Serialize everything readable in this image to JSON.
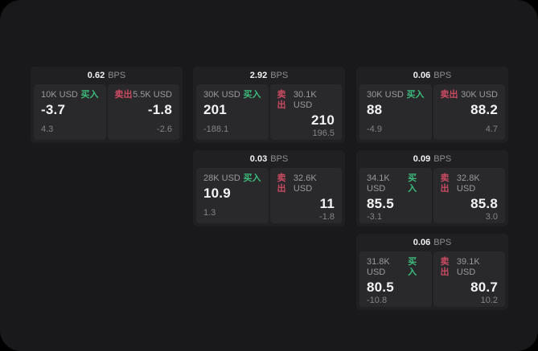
{
  "labels": {
    "bps_suffix": "BPS",
    "buy": "买入",
    "sell": "卖出"
  },
  "colors": {
    "backdrop": "#000000",
    "panel_bg": "#19191b",
    "card_bg": "#202022",
    "pane_bg": "#29292c",
    "buy_green": "#3cbb7d",
    "sell_red": "#cb4a62",
    "text_primary": "#f4f4f5",
    "text_muted": "#9a9a9e"
  },
  "grid": {
    "col_lefts": [
      38,
      240,
      443
    ],
    "row_tops": [
      83,
      187,
      291
    ]
  },
  "cards": [
    {
      "bps": "0.62",
      "col": 0,
      "row": 0,
      "buy": {
        "amount": "10K USD",
        "value": "-3.7",
        "sub": "4.3"
      },
      "sell": {
        "amount": "5.5K USD",
        "value": "-1.8",
        "sub": "-2.6"
      }
    },
    {
      "bps": "2.92",
      "col": 1,
      "row": 0,
      "buy": {
        "amount": "30K USD",
        "value": "201",
        "sub": "-188.1"
      },
      "sell": {
        "amount": "30.1K USD",
        "value": "210",
        "sub": "196.5"
      }
    },
    {
      "bps": "0.06",
      "col": 2,
      "row": 0,
      "buy": {
        "amount": "30K USD",
        "value": "88",
        "sub": "-4.9"
      },
      "sell": {
        "amount": "30K USD",
        "value": "88.2",
        "sub": "4.7"
      }
    },
    {
      "bps": "0.03",
      "col": 1,
      "row": 1,
      "buy": {
        "amount": "28K USD",
        "value": "10.9",
        "sub": "1.3"
      },
      "sell": {
        "amount": "32.6K USD",
        "value": "11",
        "sub": "-1.8"
      }
    },
    {
      "bps": "0.09",
      "col": 2,
      "row": 1,
      "buy": {
        "amount": "34.1K USD",
        "value": "85.5",
        "sub": "-3.1"
      },
      "sell": {
        "amount": "32.8K USD",
        "value": "85.8",
        "sub": "3.0"
      }
    },
    {
      "bps": "0.06",
      "col": 2,
      "row": 2,
      "buy": {
        "amount": "31.8K USD",
        "value": "80.5",
        "sub": "-10.8"
      },
      "sell": {
        "amount": "39.1K USD",
        "value": "80.7",
        "sub": "10.2"
      }
    }
  ]
}
